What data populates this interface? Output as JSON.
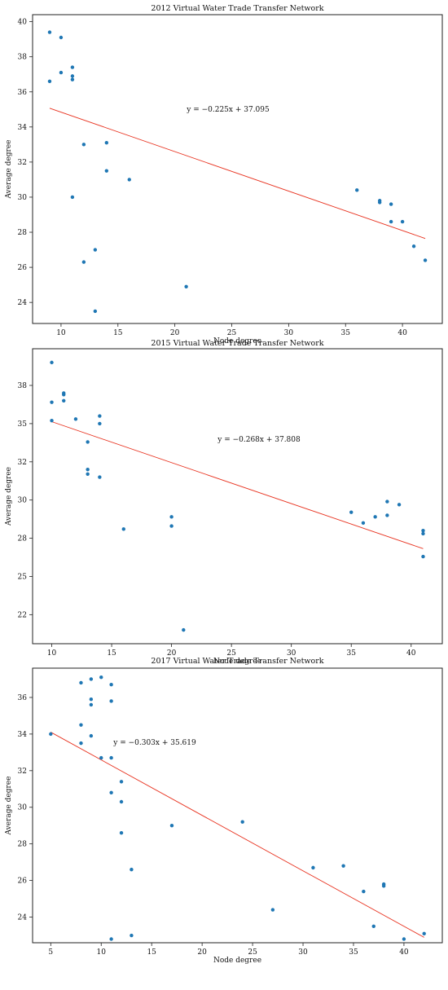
{
  "colors": {
    "points": "#1f77b4",
    "fit_line": "#e8321f",
    "axes": "#222222"
  },
  "chart_data": [
    {
      "type": "scatter",
      "title": "2012 Virtual Water Trade Transfer Network",
      "xlabel": "Node degree",
      "ylabel": "Average degree",
      "xlim": [
        7.5,
        43.5
      ],
      "ylim": [
        22.8,
        40.4
      ],
      "xticks": [
        10,
        15,
        20,
        25,
        30,
        35,
        40
      ],
      "xtick_labels": [
        "10",
        "15",
        "20",
        "25",
        "30",
        "35",
        "40"
      ],
      "yticks": [
        24,
        26,
        28,
        30,
        32,
        34,
        36,
        38,
        40
      ],
      "ytick_labels": [
        "24",
        "26",
        "28",
        "30",
        "32",
        "34",
        "36",
        "38",
        "40"
      ],
      "grid": false,
      "x": [
        9,
        9,
        10,
        10,
        11,
        11,
        11,
        11,
        12,
        12,
        13,
        13,
        14,
        14,
        16,
        21,
        36,
        38,
        38,
        39,
        39,
        40,
        41,
        42
      ],
      "y": [
        39.4,
        36.6,
        39.1,
        37.1,
        37.4,
        36.9,
        36.7,
        30.0,
        33.0,
        26.3,
        27.0,
        23.5,
        33.1,
        31.5,
        31.0,
        24.9,
        30.4,
        29.8,
        29.7,
        29.6,
        28.6,
        28.6,
        27.2,
        26.4
      ],
      "trendline": {
        "slope": -0.225,
        "intercept": 37.095,
        "x_range": [
          9,
          42
        ],
        "equation": "y = −0.225x + 37.095"
      }
    },
    {
      "type": "scatter",
      "title": "2015 Virtual Water Trade Transfer Network",
      "xlabel": "Node degree",
      "ylabel": "Average degree",
      "xlim": [
        8.4,
        42.6
      ],
      "ylim": [
        20.6,
        39.9
      ],
      "xticks": [
        10,
        15,
        20,
        25,
        30,
        35,
        40
      ],
      "xtick_labels": [
        "10",
        "15",
        "20",
        "25",
        "30",
        "35",
        "40"
      ],
      "yticks": [
        22.5,
        25.0,
        27.5,
        30.0,
        32.5,
        35.0,
        37.5
      ],
      "ytick_labels": [
        "22",
        "25",
        "28",
        "30",
        "32",
        "35",
        "38"
      ],
      "grid": false,
      "x": [
        10,
        10,
        10,
        11,
        11,
        11,
        12,
        13,
        13,
        13,
        14,
        14,
        14,
        16,
        20,
        20,
        21,
        35,
        36,
        37,
        38,
        38,
        39,
        41,
        41,
        41
      ],
      "y": [
        39.0,
        36.4,
        35.2,
        36.9,
        37.0,
        36.5,
        35.3,
        33.8,
        32.0,
        31.7,
        35.5,
        35.0,
        31.5,
        28.1,
        28.9,
        28.3,
        21.5,
        29.2,
        28.5,
        28.9,
        29.9,
        29.0,
        29.7,
        28.0,
        27.8,
        26.3
      ],
      "trendline": {
        "slope": -0.268,
        "intercept": 37.808,
        "x_range": [
          10,
          41
        ],
        "equation": "y = −0.268x + 37.808"
      }
    },
    {
      "type": "scatter",
      "title": "2017 Virtual Water Trade Transfer Network",
      "xlabel": "Node degree",
      "ylabel": "Average degree",
      "xlim": [
        3.2,
        43.8
      ],
      "ylim": [
        22.6,
        37.6
      ],
      "xticks": [
        5,
        10,
        15,
        20,
        25,
        30,
        35,
        40
      ],
      "xtick_labels": [
        "5",
        "10",
        "15",
        "20",
        "25",
        "30",
        "35",
        "40"
      ],
      "yticks": [
        24,
        26,
        28,
        30,
        32,
        34,
        36
      ],
      "ytick_labels": [
        "24",
        "26",
        "28",
        "30",
        "32",
        "34",
        "36"
      ],
      "grid": false,
      "x": [
        5,
        8,
        8,
        8,
        9,
        9,
        9,
        9,
        10,
        10,
        11,
        11,
        11,
        11,
        11,
        12,
        12,
        12,
        13,
        13,
        17,
        24,
        27,
        31,
        34,
        36,
        37,
        38,
        38,
        40,
        42
      ],
      "y": [
        34.0,
        36.8,
        34.5,
        33.5,
        37.0,
        35.9,
        35.6,
        33.9,
        37.1,
        32.7,
        36.7,
        35.8,
        32.7,
        30.8,
        22.8,
        31.4,
        30.3,
        28.6,
        26.6,
        23.0,
        29.0,
        29.2,
        24.4,
        26.7,
        26.8,
        25.4,
        23.5,
        25.8,
        25.7,
        22.8,
        23.1
      ],
      "trendline": {
        "slope": -0.303,
        "intercept": 35.619,
        "x_range": [
          5,
          42
        ],
        "equation": "y = −0.303x + 35.619"
      }
    }
  ]
}
